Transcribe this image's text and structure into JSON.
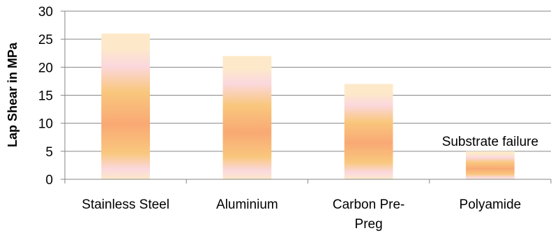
{
  "chart_data": {
    "type": "bar",
    "categories": [
      [
        "Stainless Steel"
      ],
      [
        "Aluminium"
      ],
      [
        "Carbon Pre-",
        "Preg"
      ],
      [
        "Polyamide"
      ]
    ],
    "values": [
      26,
      22,
      17,
      5
    ],
    "ylabel": "Lap Shear in MPa",
    "xlabel": "",
    "title": "",
    "ylim": [
      0,
      30
    ],
    "yticks": [
      0,
      5,
      10,
      15,
      20,
      25,
      30
    ],
    "grid": true,
    "legend": "none",
    "annotations": [
      {
        "category_index": 3,
        "text": "Substrate failure"
      }
    ],
    "colors": {
      "grid": "#868686",
      "axis": "#868686",
      "bar_light": "#fde9c9",
      "bar_pink": "#fbd8de",
      "bar_orange": "#f9a974",
      "bar_yellow": "#f9c77d"
    }
  }
}
